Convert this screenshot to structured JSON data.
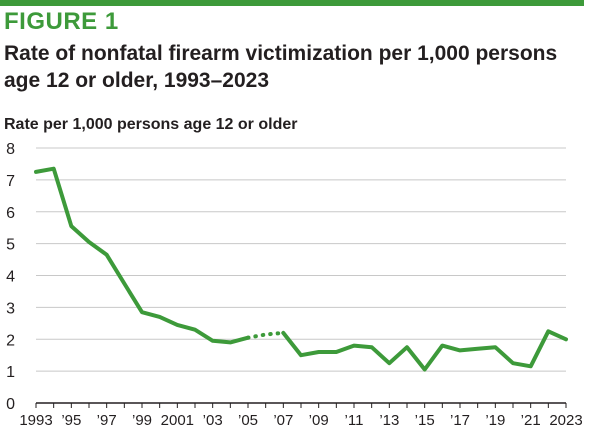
{
  "figure_label": "FIGURE 1",
  "title": "Rate of nonfatal firearm victimization per 1,000 persons age 12 or older, 1993–2023",
  "colors": {
    "accent": "#3d9a3a",
    "line": "#3d9a3a",
    "grid": "#c8c8c8",
    "axis": "#231f20"
  },
  "chart_data": {
    "type": "line",
    "title": "Rate of nonfatal firearm victimization per 1,000 persons age 12 or older, 1993–2023",
    "ylabel": "Rate per 1,000 persons age 12 or older",
    "xlabel": "",
    "ylim": [
      0,
      8
    ],
    "yticks": [
      0,
      1,
      2,
      3,
      4,
      5,
      6,
      7,
      8
    ],
    "xlim": [
      1993,
      2023
    ],
    "xtick_labels": [
      {
        "year": 1993,
        "label": "1993"
      },
      {
        "year": 1995,
        "label": "’95"
      },
      {
        "year": 1997,
        "label": "’97"
      },
      {
        "year": 1999,
        "label": "’99"
      },
      {
        "year": 2001,
        "label": "2001"
      },
      {
        "year": 2003,
        "label": "’03"
      },
      {
        "year": 2005,
        "label": "’05"
      },
      {
        "year": 2007,
        "label": "’07"
      },
      {
        "year": 2009,
        "label": "’09"
      },
      {
        "year": 2011,
        "label": "’11"
      },
      {
        "year": 2013,
        "label": "’13"
      },
      {
        "year": 2015,
        "label": "’15"
      },
      {
        "year": 2017,
        "label": "’17"
      },
      {
        "year": 2019,
        "label": "’19"
      },
      {
        "year": 2021,
        "label": "’21"
      },
      {
        "year": 2023,
        "label": "2023"
      }
    ],
    "grid": "horizontal",
    "series": [
      {
        "x": [
          1993,
          1994,
          1995,
          1996,
          1997,
          1998,
          1999,
          2000,
          2001,
          2002,
          2003,
          2004,
          2005
        ],
        "y": [
          7.25,
          7.35,
          5.55,
          5.05,
          4.65,
          3.75,
          2.85,
          2.7,
          2.45,
          2.3,
          1.95,
          1.9,
          2.05
        ],
        "style": "solid"
      },
      {
        "x": [
          2005,
          2006,
          2007
        ],
        "y": [
          2.05,
          2.15,
          2.2
        ],
        "style": "dotted"
      },
      {
        "x": [
          2007,
          2008,
          2009,
          2010,
          2011,
          2012,
          2013,
          2014,
          2015,
          2016,
          2017,
          2018,
          2019,
          2020,
          2021,
          2022,
          2023
        ],
        "y": [
          2.2,
          1.5,
          1.6,
          1.6,
          1.8,
          1.75,
          1.25,
          1.75,
          1.05,
          1.8,
          1.65,
          1.7,
          1.75,
          1.25,
          1.15,
          2.25,
          2.0
        ],
        "style": "solid"
      }
    ]
  }
}
